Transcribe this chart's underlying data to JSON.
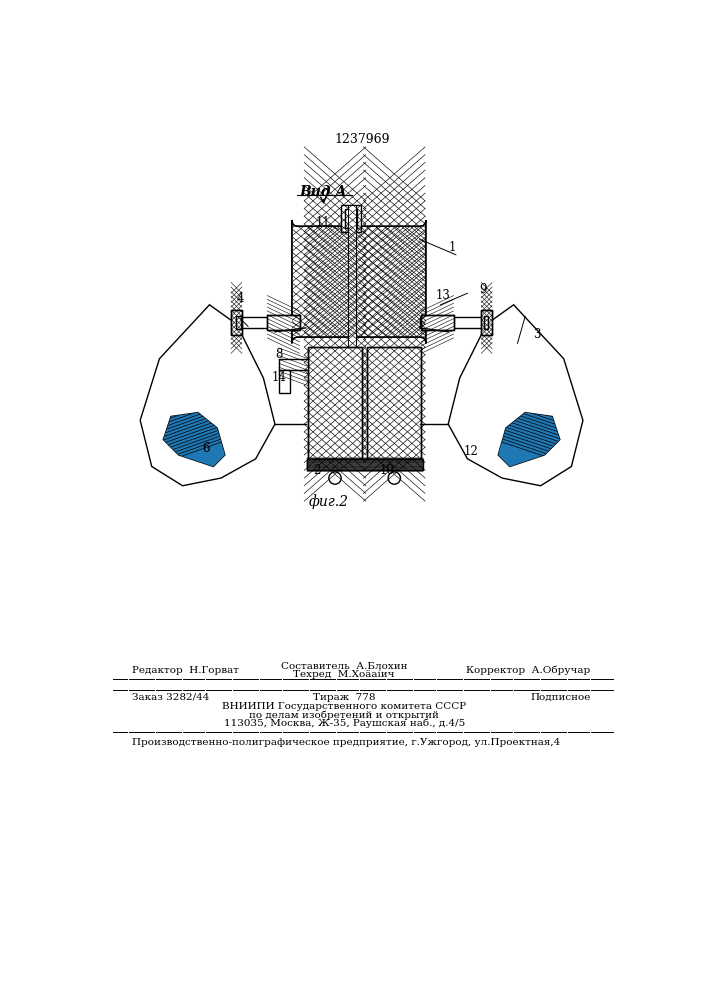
{
  "patent_number": "1237969",
  "view_label": "Вид А",
  "fig_label": "фиг.2",
  "bg_color": "#ffffff",
  "line_color": "#000000",
  "footer": {
    "editor": "Редактор  Н.Горват",
    "composer_line1": "Составитель  А.Блохин",
    "composer_line2": "Техред  М.Хоäаíич",
    "corrector": "Корректор  А.Обручар",
    "order": "Заказ 3282/44",
    "tirage": "Тираж  778",
    "podpisnoe": "Подписное",
    "vniiipi_line1": "ВНИИПИ Государственного комитета СССР",
    "vniiipi_line2": "по делам изобретений и открытий",
    "vniiipi_line3": "113035, Москва, Ж-35, Раушская наб., д.4/5",
    "factory": "Производственно-полиграфическое предприятие, г.Ужгород, ул.Проектная,4"
  }
}
